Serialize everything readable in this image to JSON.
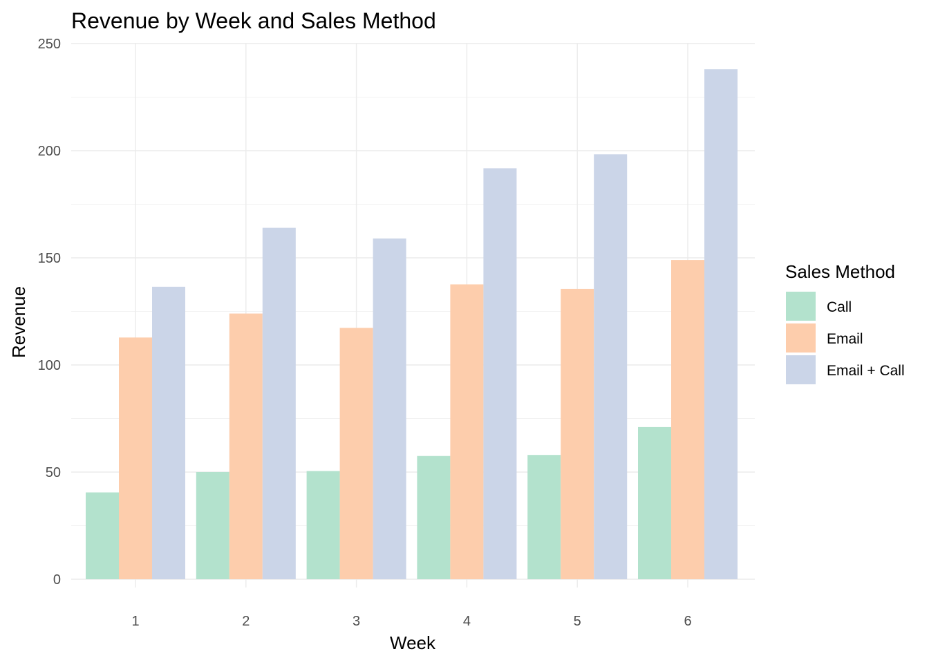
{
  "chart_data": {
    "type": "bar",
    "title": "Revenue by Week and Sales Method",
    "xlabel": "Week",
    "ylabel": "Revenue",
    "categories": [
      "1",
      "2",
      "3",
      "4",
      "5",
      "6"
    ],
    "ylim": [
      0,
      250
    ],
    "yticks": [
      0,
      50,
      100,
      150,
      200,
      250
    ],
    "grid": true,
    "legend": {
      "title": "Sales Method",
      "placement": "right"
    },
    "series": [
      {
        "name": "Call",
        "color": "#b3e2cd",
        "values": [
          40.5,
          50,
          50.5,
          57.5,
          58,
          71
        ]
      },
      {
        "name": "Email",
        "color": "#fdcdac",
        "values": [
          112.8,
          124,
          117.3,
          137.6,
          135.5,
          149
        ]
      },
      {
        "name": "Email + Call",
        "color": "#cbd5e8",
        "values": [
          136.5,
          164,
          159,
          191.8,
          198.3,
          238
        ]
      }
    ]
  }
}
